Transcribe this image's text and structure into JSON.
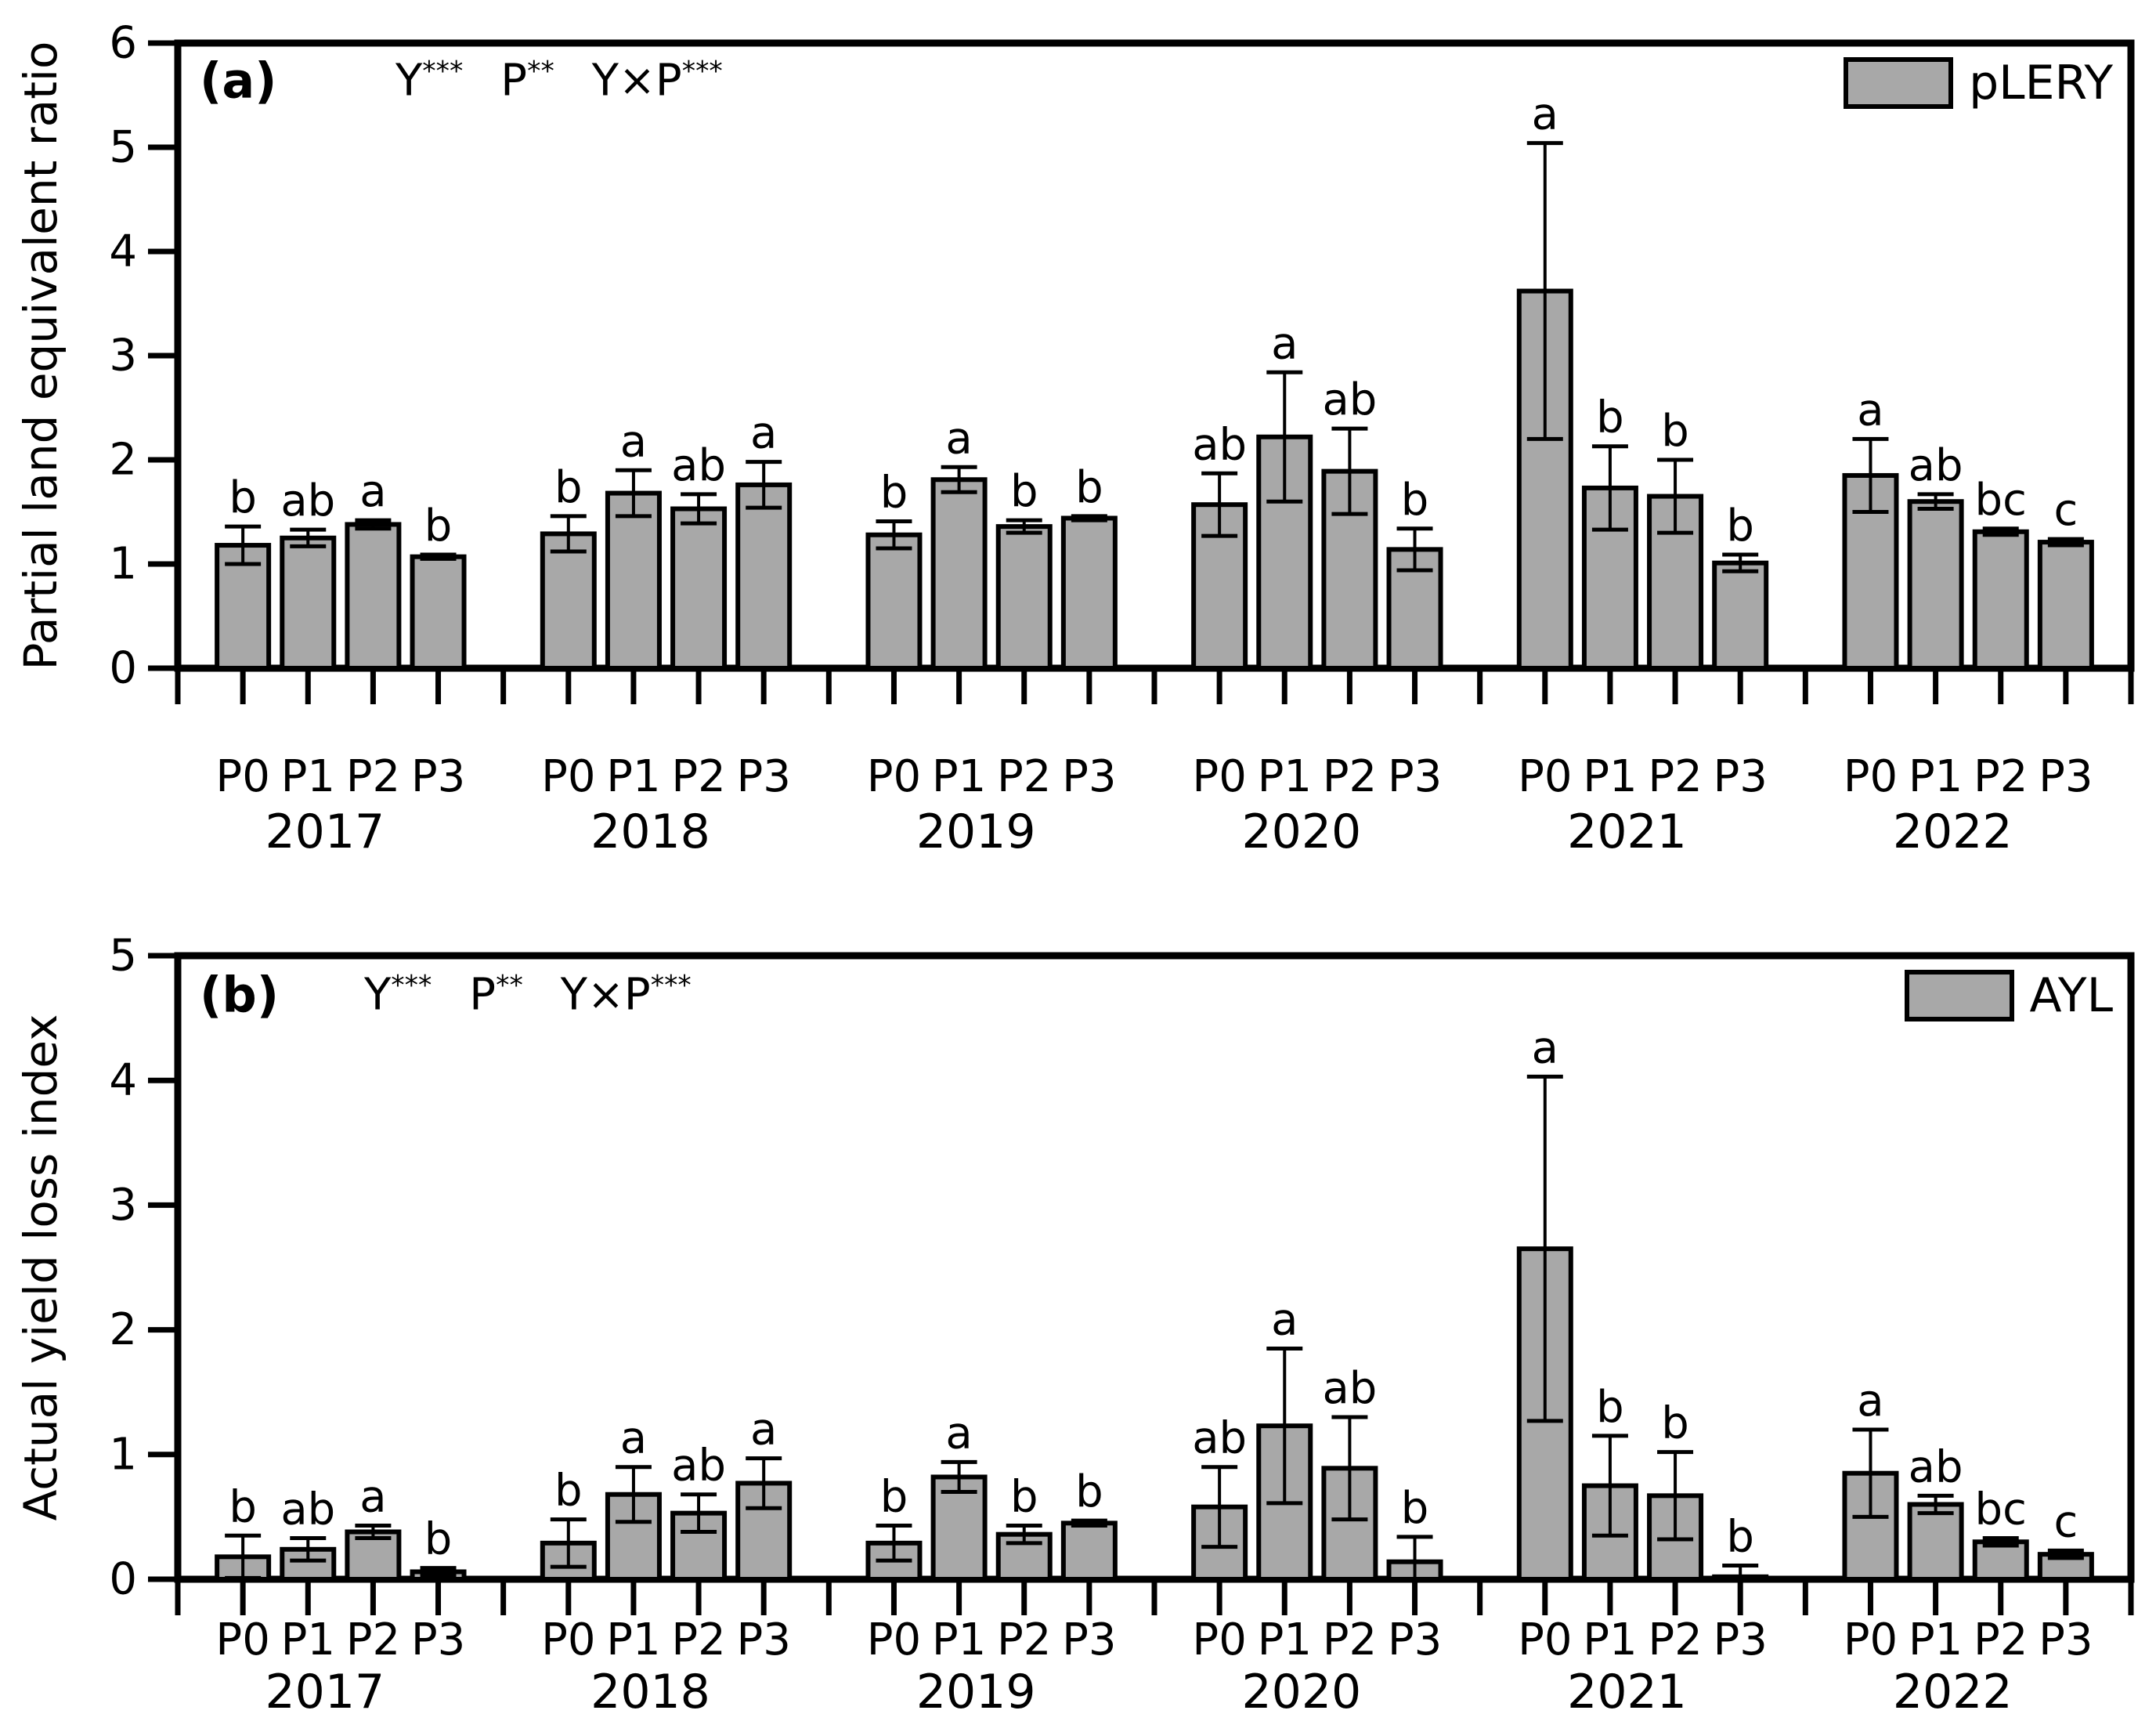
{
  "colors": {
    "bar_fill": "#a8a8a8",
    "axis": "#000000",
    "background": "#ffffff"
  },
  "chart_data": [
    {
      "type": "bar",
      "panel_label": "(a)",
      "ylabel": "Partial land equivalent ratio",
      "legend": "pLERY",
      "significance_note": "Y*** P** Y×P***",
      "sig_terms": [
        {
          "base": "Y",
          "sup": "***"
        },
        {
          "base": "P",
          "sup": "**"
        },
        {
          "base": "Y×P",
          "sup": "***"
        }
      ],
      "ylim": [
        0,
        6
      ],
      "y_ticks": [
        0,
        1,
        2,
        3,
        4,
        5,
        6
      ],
      "categories": [
        "2017",
        "2018",
        "2019",
        "2020",
        "2021",
        "2022"
      ],
      "treatments": [
        "P0",
        "P1",
        "P2",
        "P3"
      ],
      "grid": false,
      "legend_position": "top-right",
      "groups": [
        {
          "year": "2017",
          "bars": [
            {
              "treatment": "P0",
              "value": 1.18,
              "error": 0.18,
              "letter": "b"
            },
            {
              "treatment": "P1",
              "value": 1.25,
              "error": 0.08,
              "letter": "ab"
            },
            {
              "treatment": "P2",
              "value": 1.38,
              "error": 0.04,
              "letter": "a"
            },
            {
              "treatment": "P3",
              "value": 1.07,
              "error": 0.02,
              "letter": "b"
            }
          ]
        },
        {
          "year": "2018",
          "bars": [
            {
              "treatment": "P0",
              "value": 1.29,
              "error": 0.17,
              "letter": "b"
            },
            {
              "treatment": "P1",
              "value": 1.68,
              "error": 0.22,
              "letter": "a"
            },
            {
              "treatment": "P2",
              "value": 1.53,
              "error": 0.14,
              "letter": "ab"
            },
            {
              "treatment": "P3",
              "value": 1.76,
              "error": 0.22,
              "letter": "a"
            }
          ]
        },
        {
          "year": "2019",
          "bars": [
            {
              "treatment": "P0",
              "value": 1.28,
              "error": 0.13,
              "letter": "b"
            },
            {
              "treatment": "P1",
              "value": 1.81,
              "error": 0.12,
              "letter": "a"
            },
            {
              "treatment": "P2",
              "value": 1.36,
              "error": 0.06,
              "letter": "b"
            },
            {
              "treatment": "P3",
              "value": 1.44,
              "error": 0.02,
              "letter": "b"
            }
          ]
        },
        {
          "year": "2020",
          "bars": [
            {
              "treatment": "P0",
              "value": 1.57,
              "error": 0.3,
              "letter": "ab"
            },
            {
              "treatment": "P1",
              "value": 2.22,
              "error": 0.62,
              "letter": "a"
            },
            {
              "treatment": "P2",
              "value": 1.89,
              "error": 0.41,
              "letter": "ab"
            },
            {
              "treatment": "P3",
              "value": 1.14,
              "error": 0.2,
              "letter": "b"
            }
          ]
        },
        {
          "year": "2021",
          "bars": [
            {
              "treatment": "P0",
              "value": 3.62,
              "error": 1.42,
              "letter": "a"
            },
            {
              "treatment": "P1",
              "value": 1.73,
              "error": 0.4,
              "letter": "b"
            },
            {
              "treatment": "P2",
              "value": 1.65,
              "error": 0.35,
              "letter": "b"
            },
            {
              "treatment": "P3",
              "value": 1.01,
              "error": 0.08,
              "letter": "b"
            }
          ]
        },
        {
          "year": "2022",
          "bars": [
            {
              "treatment": "P0",
              "value": 1.85,
              "error": 0.35,
              "letter": "a"
            },
            {
              "treatment": "P1",
              "value": 1.6,
              "error": 0.07,
              "letter": "ab"
            },
            {
              "treatment": "P2",
              "value": 1.31,
              "error": 0.03,
              "letter": "bc"
            },
            {
              "treatment": "P3",
              "value": 1.21,
              "error": 0.03,
              "letter": "c"
            }
          ]
        }
      ]
    },
    {
      "type": "bar",
      "panel_label": "(b)",
      "ylabel": "Actual yield loss index",
      "legend": "AYL",
      "significance_note": "Y*** P** Y×P***",
      "sig_terms": [
        {
          "base": "Y",
          "sup": "***"
        },
        {
          "base": "P",
          "sup": "**"
        },
        {
          "base": "Y×P",
          "sup": "***"
        }
      ],
      "ylim": [
        0,
        5
      ],
      "y_ticks": [
        0,
        1,
        2,
        3,
        4,
        5
      ],
      "categories": [
        "2017",
        "2018",
        "2019",
        "2020",
        "2021",
        "2022"
      ],
      "treatments": [
        "P0",
        "P1",
        "P2",
        "P3"
      ],
      "grid": false,
      "legend_position": "top-right",
      "groups": [
        {
          "year": "2017",
          "bars": [
            {
              "treatment": "P0",
              "value": 0.18,
              "error": 0.17,
              "letter": "b"
            },
            {
              "treatment": "P1",
              "value": 0.24,
              "error": 0.09,
              "letter": "ab"
            },
            {
              "treatment": "P2",
              "value": 0.38,
              "error": 0.05,
              "letter": "a"
            },
            {
              "treatment": "P3",
              "value": 0.06,
              "error": 0.03,
              "letter": "b"
            }
          ]
        },
        {
          "year": "2018",
          "bars": [
            {
              "treatment": "P0",
              "value": 0.29,
              "error": 0.19,
              "letter": "b"
            },
            {
              "treatment": "P1",
              "value": 0.68,
              "error": 0.22,
              "letter": "a"
            },
            {
              "treatment": "P2",
              "value": 0.53,
              "error": 0.15,
              "letter": "ab"
            },
            {
              "treatment": "P3",
              "value": 0.77,
              "error": 0.2,
              "letter": "a"
            }
          ]
        },
        {
          "year": "2019",
          "bars": [
            {
              "treatment": "P0",
              "value": 0.29,
              "error": 0.14,
              "letter": "b"
            },
            {
              "treatment": "P1",
              "value": 0.82,
              "error": 0.12,
              "letter": "a"
            },
            {
              "treatment": "P2",
              "value": 0.36,
              "error": 0.07,
              "letter": "b"
            },
            {
              "treatment": "P3",
              "value": 0.45,
              "error": 0.02,
              "letter": "b"
            }
          ]
        },
        {
          "year": "2020",
          "bars": [
            {
              "treatment": "P0",
              "value": 0.58,
              "error": 0.32,
              "letter": "ab"
            },
            {
              "treatment": "P1",
              "value": 1.23,
              "error": 0.62,
              "letter": "a"
            },
            {
              "treatment": "P2",
              "value": 0.89,
              "error": 0.41,
              "letter": "ab"
            },
            {
              "treatment": "P3",
              "value": 0.14,
              "error": 0.2,
              "letter": "b"
            }
          ]
        },
        {
          "year": "2021",
          "bars": [
            {
              "treatment": "P0",
              "value": 2.65,
              "error": 1.38,
              "letter": "a"
            },
            {
              "treatment": "P1",
              "value": 0.75,
              "error": 0.4,
              "letter": "b"
            },
            {
              "treatment": "P2",
              "value": 0.67,
              "error": 0.35,
              "letter": "b"
            },
            {
              "treatment": "P3",
              "value": 0.02,
              "error": 0.09,
              "letter": "b"
            }
          ]
        },
        {
          "year": "2022",
          "bars": [
            {
              "treatment": "P0",
              "value": 0.85,
              "error": 0.35,
              "letter": "a"
            },
            {
              "treatment": "P1",
              "value": 0.6,
              "error": 0.07,
              "letter": "ab"
            },
            {
              "treatment": "P2",
              "value": 0.3,
              "error": 0.03,
              "letter": "bc"
            },
            {
              "treatment": "P3",
              "value": 0.2,
              "error": 0.03,
              "letter": "c"
            }
          ]
        }
      ]
    }
  ]
}
